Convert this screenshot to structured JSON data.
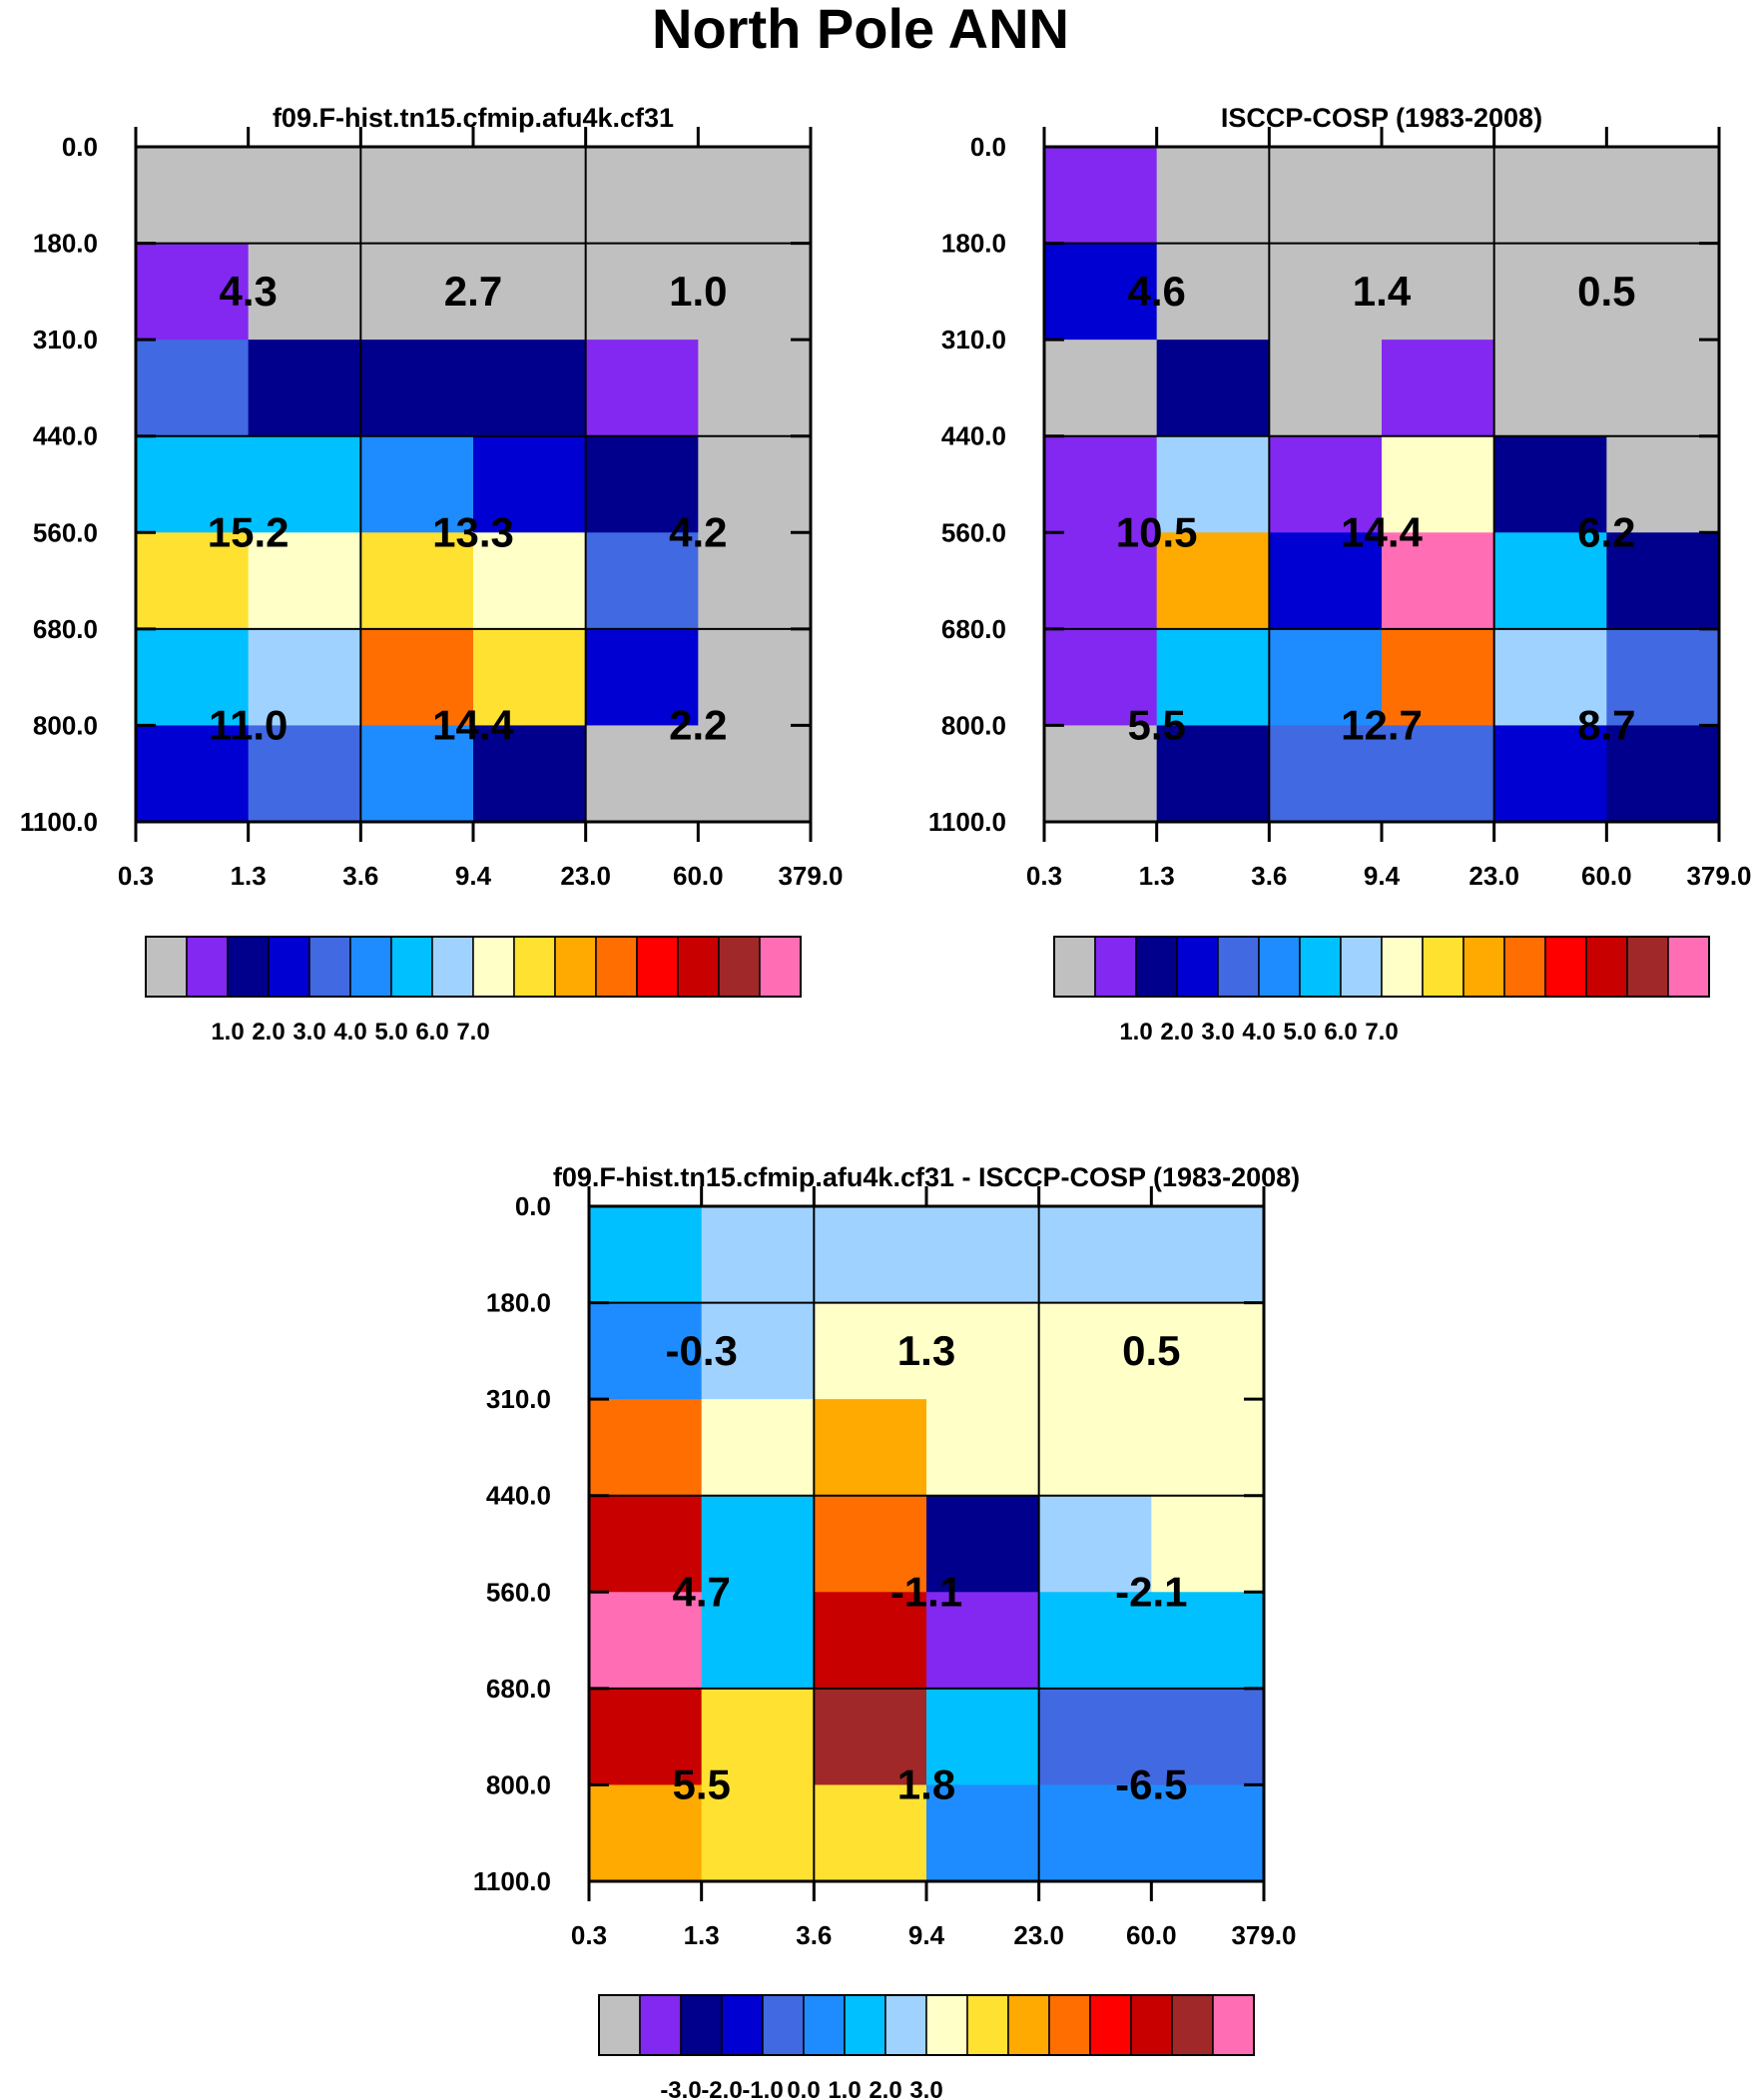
{
  "figure_title": "North Pole ANN",
  "colorbar_palette": [
    "#c0c0c0",
    "#8228f0",
    "#00008c",
    "#0000d2",
    "#4169e1",
    "#1e8cff",
    "#00c0ff",
    "#a0d2ff",
    "#ffffc8",
    "#ffe132",
    "#ffaa00",
    "#ff6e00",
    "#ff0000",
    "#c80000",
    "#a02828",
    "#ff6eb4"
  ],
  "colorbar_ticks_abs": [
    "1.0",
    "2.0",
    "3.0",
    "4.0",
    "5.0",
    "6.0",
    "7.0"
  ],
  "colorbar_ticks_diff": [
    "-3.0",
    "-2.0",
    "-1.0",
    "0.0",
    "1.0",
    "2.0",
    "3.0"
  ],
  "chart_data": [
    {
      "type": "heatmap",
      "title": "f09.F-hist.tn15.cfmip.afu4k.cf31",
      "x_ticks": [
        "0.3",
        "1.3",
        "3.6",
        "9.4",
        "23.0",
        "60.0",
        "379.0"
      ],
      "y_ticks": [
        "0.0",
        "180.0",
        "310.0",
        "440.0",
        "560.0",
        "680.0",
        "800.0",
        "1100.0"
      ],
      "xlabel": "",
      "ylabel": "",
      "cell_colors": [
        [
          0,
          0,
          0,
          0,
          0,
          0
        ],
        [
          1,
          0,
          0,
          0,
          0,
          0
        ],
        [
          4,
          2,
          2,
          2,
          1,
          0
        ],
        [
          6,
          6,
          5,
          3,
          2,
          0
        ],
        [
          9,
          8,
          9,
          8,
          4,
          0
        ],
        [
          6,
          7,
          11,
          9,
          3,
          0
        ],
        [
          3,
          4,
          5,
          2,
          0,
          0
        ]
      ],
      "annotations": [
        {
          "row": 0,
          "col": 0,
          "text": "4.3"
        },
        {
          "row": 0,
          "col": 1,
          "text": "2.7"
        },
        {
          "row": 0,
          "col": 2,
          "text": "1.0"
        },
        {
          "row": 1,
          "col": 0,
          "text": "15.2"
        },
        {
          "row": 1,
          "col": 1,
          "text": "13.3"
        },
        {
          "row": 1,
          "col": 2,
          "text": "4.2"
        },
        {
          "row": 2,
          "col": 0,
          "text": "11.0"
        },
        {
          "row": 2,
          "col": 1,
          "text": "14.4"
        },
        {
          "row": 2,
          "col": 2,
          "text": "2.2"
        }
      ]
    },
    {
      "type": "heatmap",
      "title": "ISCCP-COSP (1983-2008)",
      "x_ticks": [
        "0.3",
        "1.3",
        "3.6",
        "9.4",
        "23.0",
        "60.0",
        "379.0"
      ],
      "y_ticks": [
        "0.0",
        "180.0",
        "310.0",
        "440.0",
        "560.0",
        "680.0",
        "800.0",
        "1100.0"
      ],
      "xlabel": "",
      "ylabel": "",
      "cell_colors": [
        [
          1,
          0,
          0,
          0,
          0,
          0
        ],
        [
          3,
          0,
          0,
          0,
          0,
          0
        ],
        [
          0,
          2,
          0,
          1,
          0,
          0
        ],
        [
          1,
          7,
          1,
          8,
          2,
          0
        ],
        [
          1,
          10,
          3,
          15,
          6,
          2
        ],
        [
          1,
          6,
          5,
          11,
          7,
          4
        ],
        [
          0,
          2,
          4,
          4,
          3,
          2
        ]
      ],
      "annotations": [
        {
          "row": 0,
          "col": 0,
          "text": "4.6"
        },
        {
          "row": 0,
          "col": 1,
          "text": "1.4"
        },
        {
          "row": 0,
          "col": 2,
          "text": "0.5"
        },
        {
          "row": 1,
          "col": 0,
          "text": "10.5"
        },
        {
          "row": 1,
          "col": 1,
          "text": "14.4"
        },
        {
          "row": 1,
          "col": 2,
          "text": "6.2"
        },
        {
          "row": 2,
          "col": 0,
          "text": "5.5"
        },
        {
          "row": 2,
          "col": 1,
          "text": "12.7"
        },
        {
          "row": 2,
          "col": 2,
          "text": "8.7"
        }
      ]
    },
    {
      "type": "heatmap",
      "title": "f09.F-hist.tn15.cfmip.afu4k.cf31 - ISCCP-COSP (1983-2008)",
      "x_ticks": [
        "0.3",
        "1.3",
        "3.6",
        "9.4",
        "23.0",
        "60.0",
        "379.0"
      ],
      "y_ticks": [
        "0.0",
        "180.0",
        "310.0",
        "440.0",
        "560.0",
        "680.0",
        "800.0",
        "1100.0"
      ],
      "xlabel": "",
      "ylabel": "",
      "cell_colors": [
        [
          6,
          7,
          7,
          7,
          7,
          7
        ],
        [
          5,
          7,
          8,
          8,
          8,
          8
        ],
        [
          11,
          8,
          10,
          8,
          8,
          8
        ],
        [
          13,
          6,
          11,
          2,
          7,
          8
        ],
        [
          15,
          6,
          13,
          1,
          6,
          6
        ],
        [
          13,
          9,
          14,
          6,
          4,
          4
        ],
        [
          10,
          9,
          9,
          5,
          5,
          5
        ]
      ],
      "annotations": [
        {
          "row": 0,
          "col": 0,
          "text": "-0.3"
        },
        {
          "row": 0,
          "col": 1,
          "text": "1.3"
        },
        {
          "row": 0,
          "col": 2,
          "text": "0.5"
        },
        {
          "row": 1,
          "col": 0,
          "text": "4.7"
        },
        {
          "row": 1,
          "col": 1,
          "text": "-1.1"
        },
        {
          "row": 1,
          "col": 2,
          "text": "-2.1"
        },
        {
          "row": 2,
          "col": 0,
          "text": "5.5"
        },
        {
          "row": 2,
          "col": 1,
          "text": "1.8"
        },
        {
          "row": 2,
          "col": 2,
          "text": "-6.5"
        }
      ]
    }
  ]
}
